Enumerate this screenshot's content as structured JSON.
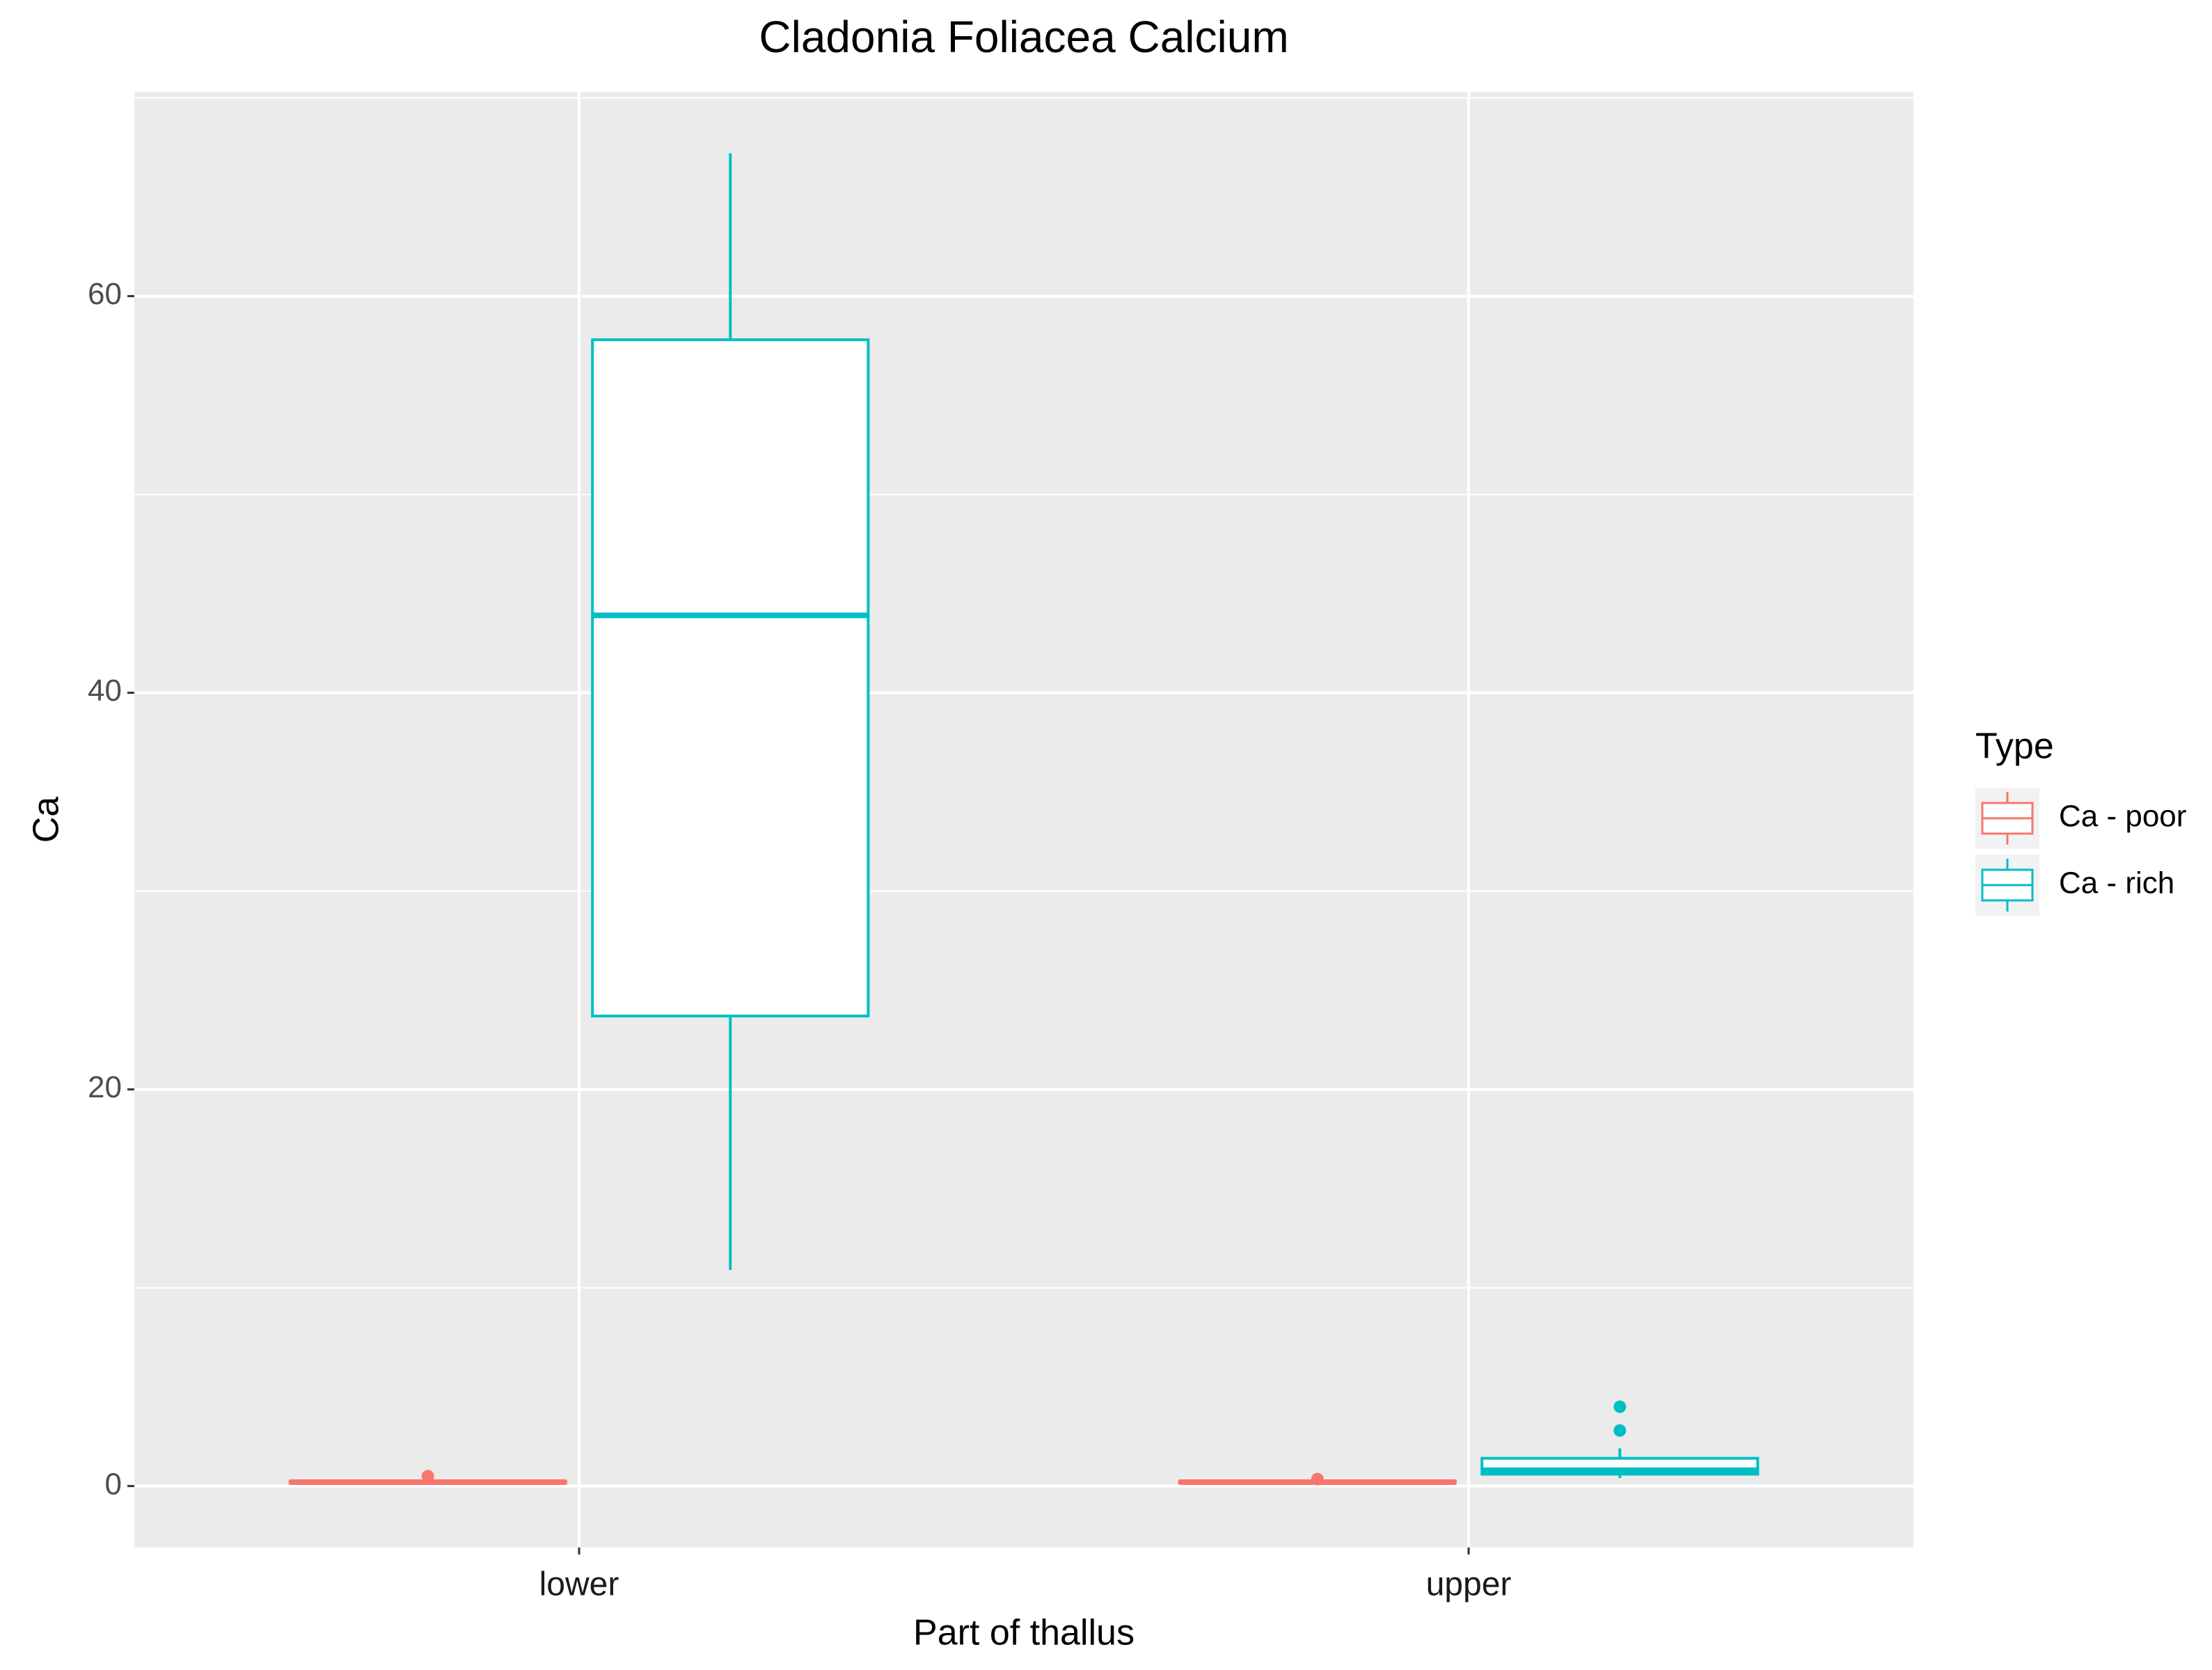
{
  "chart_data": {
    "type": "boxplot",
    "title": "Cladonia Foliacea Calcium",
    "x_label": "Part of thallus",
    "y_label": "Ca",
    "categories": [
      "lower",
      "upper"
    ],
    "legend_title": "Type",
    "legend_position": "right",
    "series": [
      {
        "name": "Ca - poor",
        "color": "#F8766D",
        "values": [
          {
            "min": 0.1,
            "q1": 0.15,
            "median": 0.2,
            "q3": 0.25,
            "max": 0.3,
            "outliers": [
              0.5
            ]
          },
          {
            "min": 0.1,
            "q1": 0.15,
            "median": 0.2,
            "q3": 0.25,
            "max": 0.3,
            "outliers": [
              0.35
            ]
          }
        ]
      },
      {
        "name": "Ca - rich",
        "color": "#00BFC4",
        "values": [
          {
            "min": 10.9,
            "q1": 23.7,
            "median": 43.9,
            "q3": 57.8,
            "max": 67.2,
            "outliers": []
          },
          {
            "min": 0.4,
            "q1": 0.6,
            "median": 0.8,
            "q3": 1.4,
            "max": 1.9,
            "outliers": [
              2.8,
              4.0
            ]
          }
        ]
      }
    ],
    "ylim": [
      -3.1,
      70.3
    ],
    "yticks": [
      0,
      20,
      40,
      60
    ],
    "minor_yticks": [
      10,
      30,
      50,
      70
    ],
    "grid": true
  }
}
